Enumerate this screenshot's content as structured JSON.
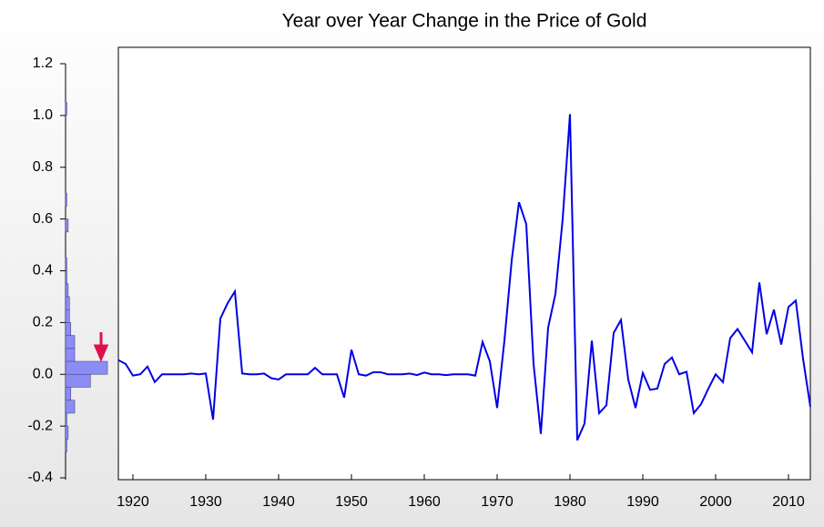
{
  "chart_data": [
    {
      "type": "line",
      "title": "Year over Year Change in the Price of Gold",
      "x": [
        1918,
        1919,
        1920,
        1921,
        1922,
        1923,
        1924,
        1925,
        1926,
        1927,
        1928,
        1929,
        1930,
        1931,
        1932,
        1933,
        1934,
        1935,
        1936,
        1937,
        1938,
        1939,
        1940,
        1941,
        1942,
        1943,
        1944,
        1945,
        1946,
        1947,
        1948,
        1949,
        1950,
        1951,
        1952,
        1953,
        1954,
        1955,
        1956,
        1957,
        1958,
        1959,
        1960,
        1961,
        1962,
        1963,
        1964,
        1965,
        1966,
        1967,
        1968,
        1969,
        1970,
        1971,
        1972,
        1973,
        1974,
        1975,
        1976,
        1977,
        1978,
        1979,
        1980,
        1981,
        1982,
        1983,
        1984,
        1985,
        1986,
        1987,
        1988,
        1989,
        1990,
        1991,
        1992,
        1993,
        1994,
        1995,
        1996,
        1997,
        1998,
        1999,
        2000,
        2001,
        2002,
        2003,
        2004,
        2005,
        2006,
        2007,
        2008,
        2009,
        2010,
        2011,
        2012,
        2013
      ],
      "series": [
        {
          "color": "#0000e6",
          "values": [
            0.055,
            0.04,
            -0.005,
            0.0,
            0.03,
            -0.03,
            0.0,
            0.0,
            0.0,
            0.0,
            0.003,
            0.0,
            0.003,
            -0.175,
            0.215,
            0.275,
            0.32,
            0.003,
            0.0,
            0.0,
            0.003,
            -0.015,
            -0.02,
            0.0,
            0.0,
            0.0,
            0.0,
            0.025,
            0.0,
            0.0,
            0.0,
            -0.09,
            0.095,
            0.0,
            -0.005,
            0.008,
            0.008,
            0.0,
            0.0,
            0.0,
            0.003,
            -0.003,
            0.007,
            0.0,
            0.0,
            -0.003,
            0.0,
            0.0,
            0.0,
            -0.005,
            0.125,
            0.05,
            -0.13,
            0.13,
            0.44,
            0.665,
            0.58,
            0.04,
            -0.23,
            0.18,
            0.31,
            0.6,
            1.005,
            -0.255,
            -0.19,
            0.13,
            -0.15,
            -0.12,
            0.16,
            0.21,
            -0.02,
            -0.13,
            0.005,
            -0.06,
            -0.055,
            0.04,
            0.065,
            0.0,
            0.01,
            -0.15,
            -0.115,
            -0.055,
            0.0,
            -0.03,
            0.14,
            0.175,
            0.13,
            0.085,
            0.355,
            0.155,
            0.25,
            0.115,
            0.26,
            0.285,
            0.06,
            -0.125
          ]
        }
      ],
      "xlim": [
        1918,
        2013
      ],
      "xticks": [
        1920,
        1930,
        1940,
        1950,
        1960,
        1970,
        1980,
        1990,
        2000,
        2010
      ],
      "ylim": [
        -0.4,
        1.2
      ],
      "yticks": [
        -0.4,
        -0.2,
        {
          "value": 0,
          "label": "0.0"
        },
        0.2,
        0.4,
        0.6,
        0.8,
        {
          "value": 1,
          "label": "1.0"
        },
        1.2
      ]
    },
    {
      "type": "histogram",
      "orientation": "horizontal",
      "color": "#8c8cf5",
      "bins": [
        -0.3,
        -0.25,
        -0.2,
        -0.15,
        -0.1,
        -0.05,
        0,
        0.05,
        0.1,
        0.15,
        0.2,
        0.25,
        0.3,
        0.35,
        0.4,
        0.45,
        0.5,
        0.55,
        0.6,
        0.65,
        0.7,
        0.75,
        0.8,
        0.85,
        0.9,
        0.95,
        1,
        1.05
      ],
      "counts": [
        1,
        2,
        1,
        7,
        4,
        19,
        32,
        7,
        7,
        4,
        3,
        3,
        2,
        1,
        1,
        0,
        0,
        2,
        0,
        1,
        0,
        0,
        0,
        0,
        0,
        0,
        1
      ]
    }
  ]
}
